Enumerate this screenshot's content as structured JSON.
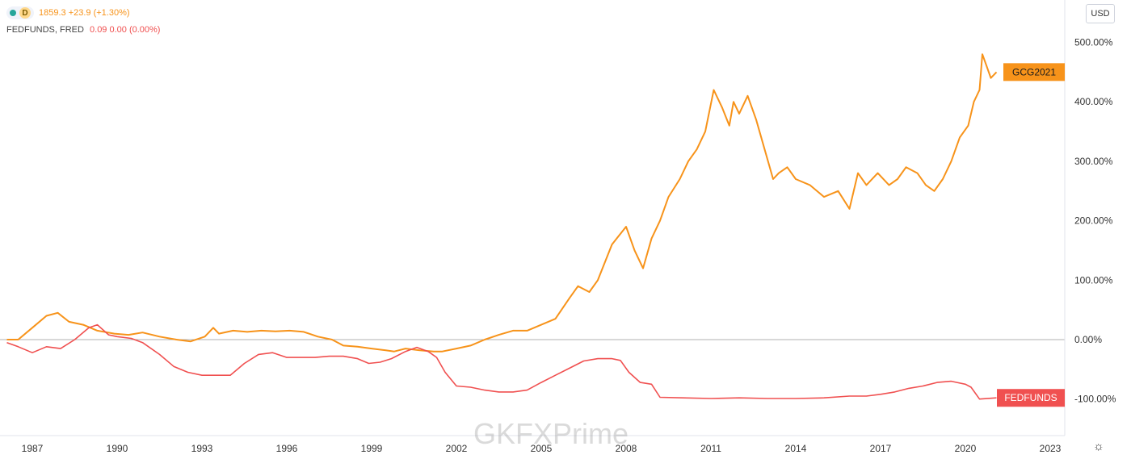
{
  "legend": {
    "gold_badge": "D",
    "gold_values": "1859.3  +23.9 (+1.30%)",
    "fed_name": "FEDFUNDS, FRED",
    "fed_values": "0.09  0.00 (0.00%)"
  },
  "currency_button": "USD",
  "watermark": "GKFXPrime",
  "colors": {
    "gold": "#f7931a",
    "fed": "#f05050",
    "axis_text": "#333333",
    "zero_line": "#b0b0b0"
  },
  "chart_data": {
    "type": "line",
    "x_unit": "year",
    "y_unit": "percent change",
    "xlim": [
      1986.1,
      2023.5
    ],
    "ylim": [
      -130,
      570
    ],
    "x_ticks": [
      "1987",
      "1990",
      "1993",
      "1996",
      "1999",
      "2002",
      "2005",
      "2008",
      "2011",
      "2014",
      "2017",
      "2020",
      "2023"
    ],
    "y_ticks": [
      "500.00%",
      "400.00%",
      "300.00%",
      "200.00%",
      "100.00%",
      "0.00%",
      "-100.00%"
    ],
    "series": [
      {
        "name": "GCG2021",
        "label": "GCG2021",
        "color": "#f7931a",
        "x": [
          1986.1,
          1986.5,
          1987.0,
          1987.5,
          1987.9,
          1988.3,
          1988.8,
          1989.3,
          1989.9,
          1990.4,
          1990.9,
          1991.5,
          1992.1,
          1992.6,
          1993.1,
          1993.4,
          1993.6,
          1994.1,
          1994.6,
          1995.1,
          1995.6,
          1996.1,
          1996.6,
          1997.1,
          1997.6,
          1998.0,
          1998.5,
          1999.0,
          1999.5,
          1999.8,
          2000.2,
          2000.7,
          2001.2,
          2001.5,
          2002.0,
          2002.5,
          2003.0,
          2003.5,
          2004.0,
          2004.5,
          2005.0,
          2005.5,
          2006.0,
          2006.3,
          2006.7,
          2007.0,
          2007.5,
          2008.0,
          2008.3,
          2008.6,
          2008.9,
          2009.2,
          2009.5,
          2009.9,
          2010.2,
          2010.5,
          2010.8,
          2011.1,
          2011.4,
          2011.65,
          2011.8,
          2012.0,
          2012.3,
          2012.6,
          2012.9,
          2013.2,
          2013.4,
          2013.7,
          2014.0,
          2014.5,
          2015.0,
          2015.5,
          2015.9,
          2016.2,
          2016.5,
          2016.9,
          2017.3,
          2017.6,
          2017.9,
          2018.3,
          2018.6,
          2018.9,
          2019.2,
          2019.5,
          2019.8,
          2020.1,
          2020.3,
          2020.5,
          2020.6,
          2020.75,
          2020.9,
          2021.1
        ],
        "values": [
          0,
          0,
          20,
          40,
          45,
          30,
          25,
          15,
          10,
          8,
          12,
          5,
          0,
          -3,
          5,
          20,
          10,
          15,
          13,
          15,
          14,
          15,
          13,
          5,
          0,
          -10,
          -12,
          -15,
          -18,
          -20,
          -15,
          -18,
          -20,
          -20,
          -15,
          -10,
          0,
          8,
          15,
          15,
          25,
          35,
          70,
          90,
          80,
          100,
          160,
          190,
          150,
          120,
          170,
          200,
          240,
          270,
          300,
          320,
          350,
          420,
          390,
          360,
          400,
          380,
          410,
          370,
          320,
          270,
          280,
          290,
          270,
          260,
          240,
          250,
          220,
          280,
          260,
          280,
          260,
          270,
          290,
          280,
          260,
          250,
          270,
          300,
          340,
          360,
          400,
          420,
          480,
          460,
          440,
          450
        ]
      },
      {
        "name": "FEDFUNDS",
        "label": "FEDFUNDS",
        "color": "#f05050",
        "x": [
          1986.1,
          1986.5,
          1987.0,
          1987.5,
          1988.0,
          1988.5,
          1989.0,
          1989.3,
          1989.7,
          1990.0,
          1990.5,
          1990.9,
          1991.5,
          1992.0,
          1992.5,
          1993.0,
          1993.5,
          1994.0,
          1994.5,
          1995.0,
          1995.5,
          1996.0,
          1996.5,
          1997.0,
          1997.5,
          1998.0,
          1998.5,
          1998.9,
          1999.3,
          1999.7,
          2000.2,
          2000.6,
          2001.0,
          2001.3,
          2001.6,
          2002.0,
          2002.5,
          2003.0,
          2003.5,
          2004.0,
          2004.5,
          2005.0,
          2005.5,
          2006.0,
          2006.5,
          2007.0,
          2007.5,
          2007.8,
          2008.1,
          2008.5,
          2008.9,
          2009.2,
          2010.0,
          2011.0,
          2012.0,
          2013.0,
          2014.0,
          2015.0,
          2015.9,
          2016.5,
          2017.0,
          2017.5,
          2018.0,
          2018.5,
          2019.0,
          2019.5,
          2019.7,
          2020.0,
          2020.2,
          2020.5,
          2021.1
        ],
        "values": [
          -5,
          -12,
          -22,
          -12,
          -15,
          0,
          20,
          25,
          8,
          5,
          2,
          -5,
          -25,
          -45,
          -55,
          -60,
          -60,
          -60,
          -40,
          -25,
          -22,
          -30,
          -30,
          -30,
          -28,
          -28,
          -32,
          -40,
          -38,
          -32,
          -20,
          -13,
          -20,
          -30,
          -55,
          -78,
          -80,
          -85,
          -88,
          -88,
          -85,
          -72,
          -60,
          -48,
          -36,
          -32,
          -32,
          -35,
          -55,
          -72,
          -75,
          -97,
          -98,
          -99,
          -98,
          -99,
          -99,
          -98,
          -95,
          -95,
          -92,
          -88,
          -82,
          -78,
          -72,
          -70,
          -72,
          -75,
          -80,
          -100,
          -98
        ]
      }
    ]
  }
}
